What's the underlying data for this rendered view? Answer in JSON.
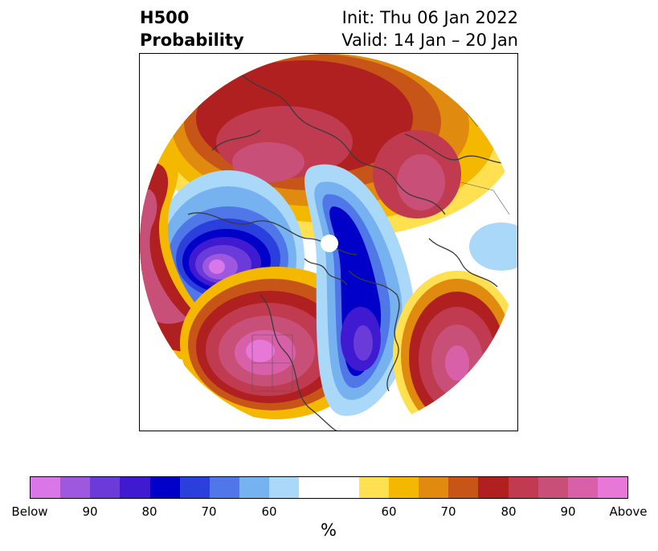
{
  "title": {
    "left_line1": "H500",
    "left_line2": "Probability",
    "right_line1": "Init: Thu 06 Jan 2022",
    "right_line2": "Valid: 14 Jan – 20 Jan"
  },
  "colorbar": {
    "label": "%",
    "colors": [
      "#d977e8",
      "#9e58e0",
      "#6a3bd9",
      "#3f1ad0",
      "#0000c8",
      "#2a3fdc",
      "#4f77e8",
      "#76b2f0",
      "#aad8f8",
      "#ffffff",
      "#ffffff",
      "#ffe050",
      "#f5b800",
      "#e08a10",
      "#c85518",
      "#b02020",
      "#c03a50",
      "#c85078",
      "#d860a8",
      "#e878d8"
    ],
    "ticks": [
      {
        "label": "Below"
      },
      {
        "label": "90"
      },
      {
        "label": "80"
      },
      {
        "label": "70"
      },
      {
        "label": "60"
      },
      {
        "label": "60"
      },
      {
        "label": "70"
      },
      {
        "label": "80"
      },
      {
        "label": "90"
      },
      {
        "label": "Above"
      }
    ]
  },
  "map": {
    "projection": "north-polar-stereographic",
    "variable": "H500",
    "pole_marker": "white-disc"
  }
}
